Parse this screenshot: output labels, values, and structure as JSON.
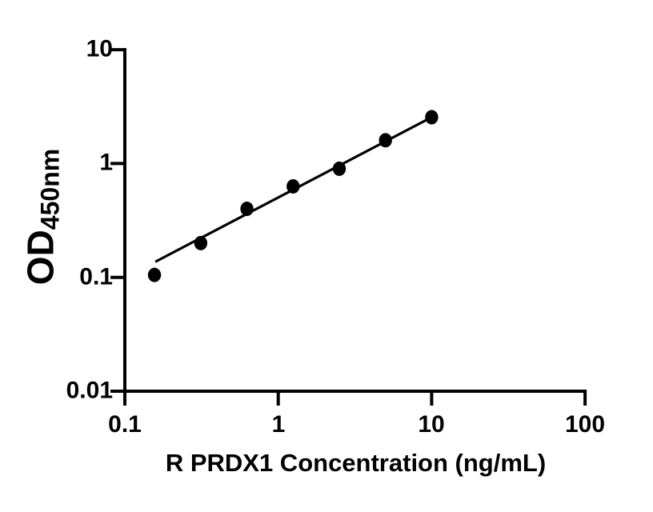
{
  "chart_data": {
    "type": "scatter",
    "title": "",
    "xlabel": "R PRDX1 Concentration (ng/mL)",
    "ylabel": "OD450nm",
    "ylabel_main": "OD",
    "ylabel_sub": "450nm",
    "x_scale": "log",
    "y_scale": "log",
    "xlim": [
      0.1,
      100
    ],
    "ylim": [
      0.01,
      10
    ],
    "grid": false,
    "legend": "none",
    "axis_color": "#000000",
    "background_color": "#ffffff",
    "marker_color": "#000000",
    "line_color": "#000000",
    "x_ticks": [
      {
        "value": 0.1,
        "label": "0.1"
      },
      {
        "value": 1,
        "label": "1"
      },
      {
        "value": 10,
        "label": "10"
      },
      {
        "value": 100,
        "label": "100"
      }
    ],
    "y_ticks": [
      {
        "value": 0.01,
        "label": "0.01"
      },
      {
        "value": 0.1,
        "label": "0.1"
      },
      {
        "value": 1,
        "label": "1"
      },
      {
        "value": 10,
        "label": "10"
      }
    ],
    "points": [
      {
        "x": 0.156,
        "y": 0.105
      },
      {
        "x": 0.3125,
        "y": 0.2
      },
      {
        "x": 0.625,
        "y": 0.4
      },
      {
        "x": 1.25,
        "y": 0.63
      },
      {
        "x": 2.5,
        "y": 0.9
      },
      {
        "x": 5,
        "y": 1.6
      },
      {
        "x": 10,
        "y": 2.55
      }
    ],
    "fit_line": {
      "x1": 0.158,
      "y1": 0.137,
      "x2": 10,
      "y2": 2.55
    }
  }
}
